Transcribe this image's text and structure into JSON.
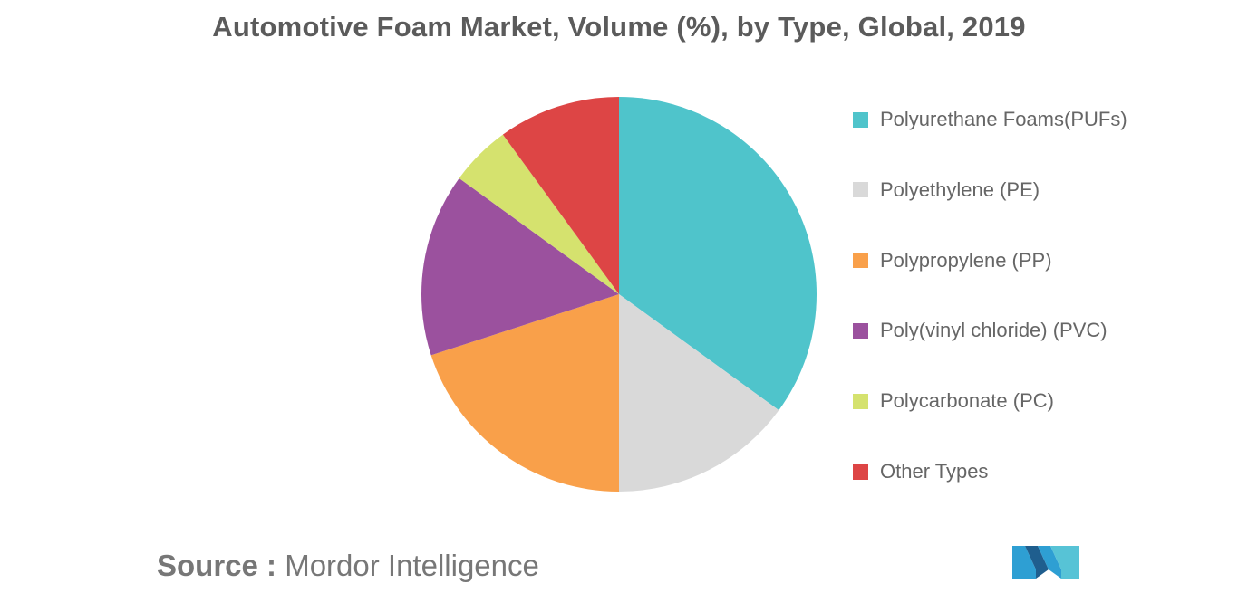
{
  "title": "Automotive Foam Market, Volume (%), by Type, Global, 2019",
  "source": {
    "label": "Source :",
    "value": "Mordor Intelligence"
  },
  "logo": {
    "icon": "mordor-intelligence-logo",
    "colors": [
      "#2e9fd3",
      "#1f5e8e",
      "#57c3d6"
    ]
  },
  "chart_data": {
    "type": "pie",
    "title": "Automotive Foam Market, Volume (%), by Type, Global, 2019",
    "start_angle_deg": 0,
    "direction": "clockwise",
    "legend_position": "right",
    "slices": [
      {
        "label": "Polyurethane Foams(PUFs)",
        "value": 35,
        "color": "#4fc4cb"
      },
      {
        "label": "Polyethylene (PE)",
        "value": 15,
        "color": "#d9d9d9"
      },
      {
        "label": "Polypropylene (PP)",
        "value": 20,
        "color": "#f9a04a"
      },
      {
        "label": "Poly(vinyl chloride) (PVC)",
        "value": 15,
        "color": "#9b519e"
      },
      {
        "label": "Polycarbonate (PC)",
        "value": 5,
        "color": "#d5e26e"
      },
      {
        "label": "Other Types",
        "value": 10,
        "color": "#dd4545"
      }
    ]
  }
}
